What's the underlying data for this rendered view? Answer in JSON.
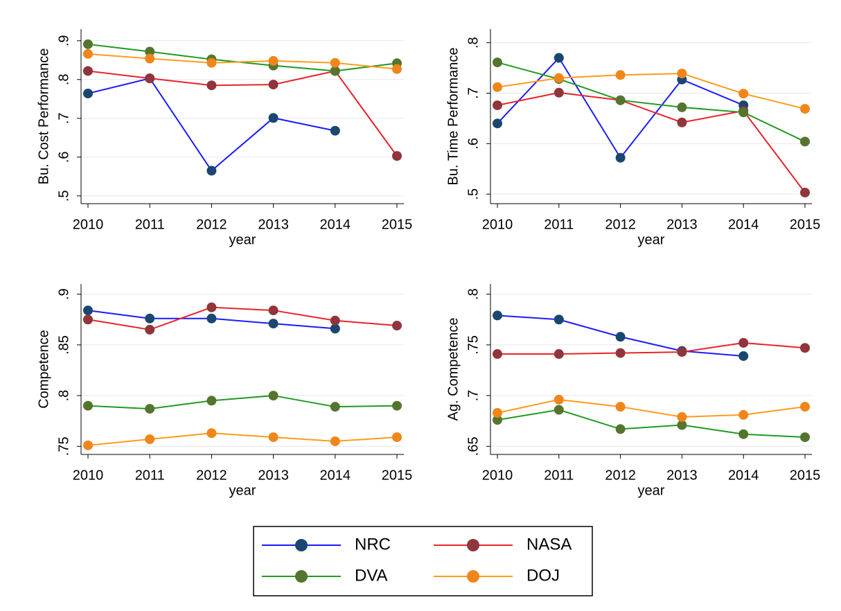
{
  "chart_data": [
    {
      "type": "line",
      "y_label": "Bu. Cost Performance",
      "x_label": "year",
      "x": [
        2010,
        2011,
        2012,
        2013,
        2014,
        2015
      ],
      "xlim": [
        2010,
        2015
      ],
      "xticks": [
        2010,
        2011,
        2012,
        2013,
        2014,
        2015
      ],
      "ylim": [
        0.48,
        0.93
      ],
      "yticks": [
        {
          "value": 0.5,
          "label": ".5"
        },
        {
          "value": 0.6,
          "label": ".6"
        },
        {
          "value": 0.7,
          "label": ".7"
        },
        {
          "value": 0.8,
          "label": ".8"
        },
        {
          "value": 0.9,
          "label": ".9"
        }
      ],
      "grid": true,
      "legend": "bottom",
      "series": [
        {
          "name": "NRC",
          "color": "#1a1aff",
          "marker_color": "#1a476f",
          "values": [
            0.764,
            0.803,
            0.565,
            0.701,
            0.668,
            null
          ]
        },
        {
          "name": "NASA",
          "color": "#e8222a",
          "marker_color": "#90353b",
          "values": [
            0.822,
            0.803,
            0.785,
            0.787,
            0.822,
            0.603
          ]
        },
        {
          "name": "DVA",
          "color": "#1f9a1f",
          "marker_color": "#55752f",
          "values": [
            0.891,
            0.872,
            0.852,
            0.836,
            0.822,
            0.842
          ]
        },
        {
          "name": "DOJ",
          "color": "#ff9a1a",
          "marker_color": "#f0861a",
          "values": [
            0.866,
            0.854,
            0.843,
            0.848,
            0.843,
            0.827
          ]
        }
      ]
    },
    {
      "type": "line",
      "y_label": "Bu. Time Performance",
      "x_label": "year",
      "x": [
        2010,
        2011,
        2012,
        2013,
        2014,
        2015
      ],
      "xlim": [
        2010,
        2015
      ],
      "xticks": [
        2010,
        2011,
        2012,
        2013,
        2014,
        2015
      ],
      "ylim": [
        0.481,
        0.827
      ],
      "yticks": [
        {
          "value": 0.5,
          "label": ".5"
        },
        {
          "value": 0.6,
          "label": ".6"
        },
        {
          "value": 0.7,
          "label": ".7"
        },
        {
          "value": 0.8,
          "label": ".8"
        }
      ],
      "grid": true,
      "series": [
        {
          "color": "#1a1aff",
          "marker_color": "#1a476f",
          "values": [
            0.64,
            0.77,
            0.572,
            0.727,
            0.676,
            null
          ]
        },
        {
          "color": "#e8222a",
          "marker_color": "#90353b",
          "values": [
            0.676,
            0.701,
            0.686,
            0.642,
            0.665,
            0.503
          ]
        },
        {
          "color": "#1f9a1f",
          "marker_color": "#55752f",
          "values": [
            0.761,
            0.728,
            0.686,
            0.672,
            0.662,
            0.604
          ]
        },
        {
          "color": "#ff9a1a",
          "marker_color": "#f0861a",
          "values": [
            0.712,
            0.73,
            0.736,
            0.739,
            0.699,
            0.669
          ]
        }
      ]
    },
    {
      "type": "line",
      "y_label": "Competence",
      "x_label": "year",
      "x": [
        2010,
        2011,
        2012,
        2013,
        2014,
        2015
      ],
      "xlim": [
        2010,
        2015
      ],
      "xticks": [
        2010,
        2011,
        2012,
        2013,
        2014,
        2015
      ],
      "ylim": [
        0.742,
        0.91
      ],
      "yticks": [
        {
          "value": 0.75,
          "label": ".75"
        },
        {
          "value": 0.8,
          "label": ".8"
        },
        {
          "value": 0.85,
          "label": ".85"
        },
        {
          "value": 0.9,
          "label": ".9"
        }
      ],
      "grid": true,
      "series": [
        {
          "color": "#1a1aff",
          "marker_color": "#1a476f",
          "values": [
            0.884,
            0.876,
            0.876,
            0.871,
            0.866,
            null
          ]
        },
        {
          "color": "#e8222a",
          "marker_color": "#90353b",
          "values": [
            0.875,
            0.865,
            0.887,
            0.884,
            0.874,
            0.869
          ]
        },
        {
          "color": "#1f9a1f",
          "marker_color": "#55752f",
          "values": [
            0.79,
            0.787,
            0.795,
            0.8,
            0.789,
            0.79
          ]
        },
        {
          "color": "#ff9a1a",
          "marker_color": "#f0861a",
          "values": [
            0.751,
            0.757,
            0.763,
            0.759,
            0.755,
            0.759
          ]
        }
      ]
    },
    {
      "type": "line",
      "y_label": "Ag. Competence",
      "x_label": "year",
      "x": [
        2010,
        2011,
        2012,
        2013,
        2014,
        2015
      ],
      "xlim": [
        2010,
        2015
      ],
      "xticks": [
        2010,
        2011,
        2012,
        2013,
        2014,
        2015
      ],
      "ylim": [
        0.642,
        0.81
      ],
      "yticks": [
        {
          "value": 0.65,
          "label": ".65"
        },
        {
          "value": 0.7,
          "label": ".7"
        },
        {
          "value": 0.75,
          "label": ".75"
        },
        {
          "value": 0.8,
          "label": ".8"
        }
      ],
      "grid": true,
      "series": [
        {
          "color": "#1a1aff",
          "marker_color": "#1a476f",
          "values": [
            0.779,
            0.775,
            0.758,
            0.744,
            0.739,
            null
          ]
        },
        {
          "color": "#e8222a",
          "marker_color": "#90353b",
          "values": [
            0.741,
            0.741,
            0.742,
            0.743,
            0.752,
            0.747
          ]
        },
        {
          "color": "#1f9a1f",
          "marker_color": "#55752f",
          "values": [
            0.676,
            0.686,
            0.667,
            0.671,
            0.662,
            0.659
          ]
        },
        {
          "color": "#ff9a1a",
          "marker_color": "#f0861a",
          "values": [
            0.683,
            0.696,
            0.689,
            0.679,
            0.681,
            0.689
          ]
        }
      ]
    }
  ]
}
